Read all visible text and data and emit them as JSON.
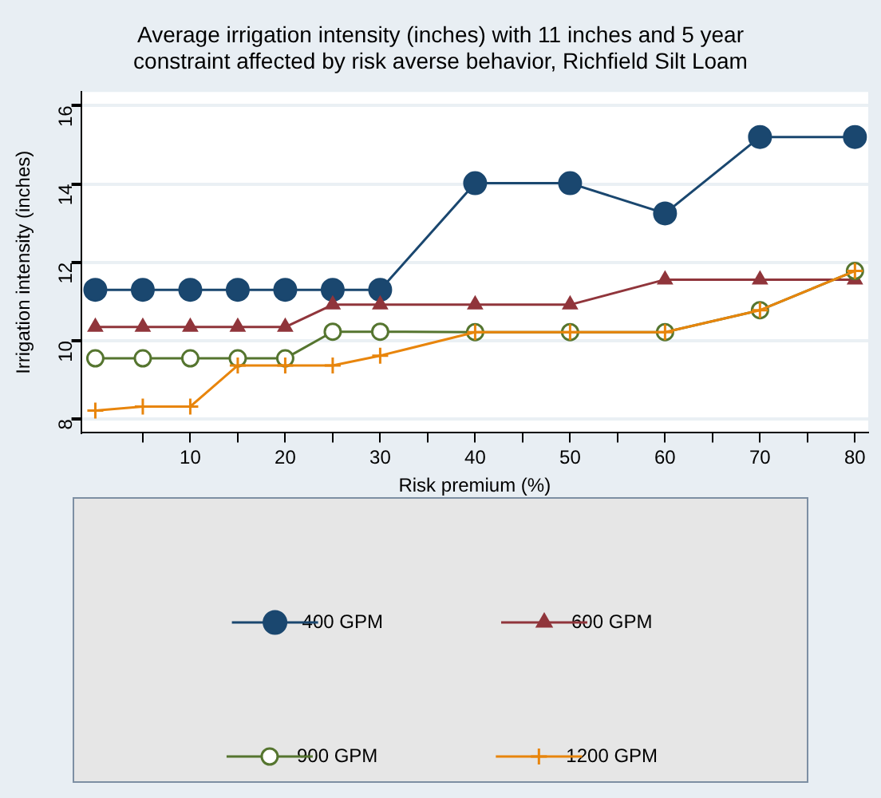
{
  "chart_data": {
    "type": "line",
    "title": "Average irrigation intensity (inches) with 11 inches and 5 year constraint affected by risk averse behavior, Richfield Silt Loam",
    "xlabel": "Risk premium (%)",
    "ylabel": "Irrigation intensity (inches)",
    "x": [
      0,
      5,
      10,
      15,
      20,
      25,
      30,
      40,
      50,
      60,
      70,
      80
    ],
    "series": [
      {
        "name": "400 GPM",
        "color": "#1a476f",
        "marker": "circle",
        "values": [
          11.3,
          11.3,
          11.3,
          11.3,
          11.3,
          11.3,
          11.3,
          14.02,
          14.02,
          13.25,
          15.2,
          15.2
        ]
      },
      {
        "name": "600 GPM",
        "color": "#90353b",
        "marker": "triangle",
        "values": [
          10.35,
          10.35,
          10.35,
          10.35,
          10.35,
          10.92,
          10.92,
          10.92,
          10.92,
          11.56,
          11.56,
          11.56
        ]
      },
      {
        "name": "900 GPM",
        "color": "#55752f",
        "marker": "hollow-circle",
        "values": [
          9.55,
          9.55,
          9.55,
          9.55,
          9.55,
          10.23,
          10.23,
          10.22,
          10.22,
          10.22,
          10.78,
          11.78
        ]
      },
      {
        "name": "1200 GPM",
        "color": "#e8850c",
        "marker": "cross",
        "values": [
          8.22,
          8.32,
          8.32,
          9.37,
          9.37,
          9.37,
          9.62,
          10.22,
          10.22,
          10.22,
          10.78,
          11.78
        ]
      }
    ],
    "xlim": [
      -1.5,
      81.4
    ],
    "ylim": [
      7.65,
      16.35
    ],
    "xticks": [
      {
        "value": 5,
        "label": null
      },
      10,
      {
        "value": 15,
        "label": null
      },
      20,
      {
        "value": 25,
        "label": null
      },
      30,
      {
        "value": 35,
        "label": null
      },
      40,
      {
        "value": 45,
        "label": null
      },
      50,
      {
        "value": 55,
        "label": null
      },
      60,
      {
        "value": 65,
        "label": null
      },
      70,
      {
        "value": 75,
        "label": null
      },
      80
    ],
    "yticks": [
      8,
      10,
      12,
      14,
      16
    ],
    "grid": "y",
    "legend": "bottom",
    "line_style": "solid"
  }
}
